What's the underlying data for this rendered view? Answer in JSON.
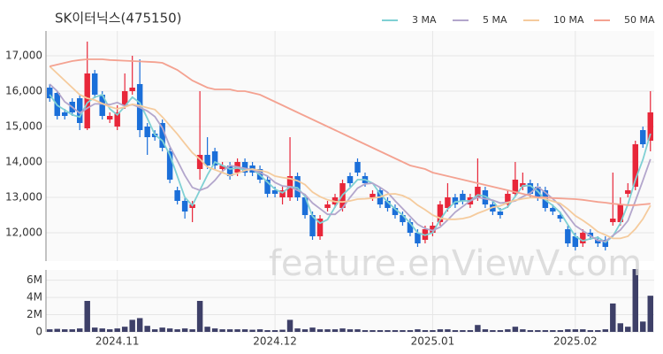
{
  "chart_data": [
    {
      "type": "candlestick",
      "title": "SK이터닉스(475150)",
      "watermark": "feature.enViewV.com",
      "categories": [
        null,
        null,
        null,
        null,
        null,
        null,
        null,
        null,
        null,
        "2024.11",
        null,
        null,
        null,
        null,
        null,
        null,
        null,
        null,
        null,
        null,
        null,
        null,
        null,
        null,
        null,
        null,
        null,
        null,
        null,
        null,
        "2024.12",
        null,
        null,
        null,
        null,
        null,
        null,
        null,
        null,
        null,
        null,
        null,
        null,
        null,
        null,
        null,
        null,
        null,
        null,
        null,
        null,
        "2025.01",
        null,
        null,
        null,
        null,
        null,
        null,
        null,
        null,
        null,
        null,
        null,
        null,
        null,
        null,
        null,
        null,
        null,
        null,
        "2025.02",
        null,
        null,
        null,
        null,
        null,
        null,
        null,
        null,
        null,
        null
      ],
      "open": [
        16100,
        15950,
        15400,
        15700,
        15800,
        14950,
        16500,
        15900,
        15200,
        15000,
        15600,
        16000,
        16200,
        15000,
        14800,
        15100,
        14300,
        13200,
        12900,
        12700,
        13800,
        14200,
        14300,
        13800,
        13900,
        13700,
        14000,
        13900,
        13800,
        13500,
        13200,
        13000,
        13000,
        13600,
        13000,
        12500,
        11900,
        12700,
        12800,
        12700,
        13600,
        14000,
        13600,
        13000,
        13200,
        12900,
        12700,
        12500,
        12300,
        12000,
        11800,
        12000,
        12300,
        12700,
        13000,
        13100,
        12800,
        13000,
        13200,
        12800,
        12600,
        12800,
        13100,
        13300,
        13400,
        13300,
        13200,
        12700,
        12500,
        12100,
        11900,
        11700,
        12000,
        11800,
        11800,
        12300,
        12300,
        13100,
        13300,
        14900,
        14600
      ],
      "high": [
        16200,
        16000,
        15500,
        15800,
        15900,
        17400,
        16600,
        16000,
        15400,
        15600,
        16500,
        17000,
        16900,
        15100,
        14900,
        15200,
        14400,
        13300,
        13000,
        12900,
        16000,
        14700,
        14400,
        14000,
        14000,
        14100,
        14100,
        14000,
        13900,
        13600,
        13300,
        13300,
        14700,
        13700,
        13100,
        12600,
        12500,
        12900,
        13100,
        13500,
        13700,
        14100,
        13700,
        13200,
        13300,
        13000,
        12800,
        12600,
        12400,
        12100,
        12200,
        12300,
        12900,
        13400,
        13100,
        13200,
        13100,
        14100,
        13300,
        12900,
        12700,
        13200,
        14000,
        13700,
        13500,
        13400,
        13300,
        12800,
        12600,
        12200,
        12000,
        12100,
        12100,
        11900,
        11900,
        13700,
        13000,
        13400,
        14600,
        15000,
        16000
      ],
      "low": [
        15700,
        15200,
        15200,
        15300,
        14900,
        14900,
        15800,
        15200,
        15100,
        14900,
        15500,
        15900,
        14700,
        14200,
        14600,
        14300,
        13400,
        12800,
        12400,
        12300,
        13500,
        13800,
        13800,
        13700,
        13500,
        13600,
        13600,
        13600,
        13400,
        13000,
        13000,
        12800,
        12900,
        12900,
        12400,
        11800,
        11800,
        12600,
        12700,
        12600,
        13300,
        13600,
        13300,
        12900,
        12700,
        12600,
        12400,
        12200,
        11900,
        11600,
        11700,
        11900,
        12200,
        12600,
        12700,
        12800,
        12700,
        12900,
        12700,
        12500,
        12400,
        12700,
        13000,
        13200,
        13000,
        12900,
        12600,
        12500,
        12300,
        11600,
        11500,
        11600,
        11800,
        11600,
        11500,
        12200,
        12200,
        13000,
        13200,
        14400,
        14300
      ],
      "close": [
        15800,
        15300,
        15300,
        15400,
        15100,
        16500,
        15900,
        15300,
        15300,
        15400,
        16000,
        16100,
        14900,
        14700,
        14700,
        14400,
        13500,
        12900,
        12600,
        12800,
        14200,
        13900,
        13900,
        13900,
        13600,
        14000,
        13700,
        13700,
        13500,
        13100,
        13100,
        13200,
        13600,
        13000,
        12500,
        11900,
        12400,
        12800,
        13000,
        13400,
        13400,
        13700,
        13400,
        13100,
        12800,
        12700,
        12500,
        12300,
        12000,
        11700,
        12100,
        12200,
        12800,
        13000,
        12800,
        12900,
        13000,
        13300,
        12800,
        12600,
        12500,
        13100,
        13500,
        13400,
        13100,
        13000,
        12700,
        12600,
        12400,
        11700,
        11600,
        12000,
        11900,
        11700,
        11600,
        12400,
        12800,
        13200,
        14500,
        14500,
        15400
      ],
      "up_color": "#e8273a",
      "down_color": "#1b6fd9",
      "series": [
        {
          "name": "3 MA",
          "color": "#7fd0d4",
          "values": [
            15900,
            15600,
            15470,
            15330,
            15270,
            15670,
            15830,
            15900,
            15500,
            15330,
            15570,
            15830,
            15670,
            15230,
            14770,
            14600,
            14200,
            13600,
            13000,
            12770,
            13200,
            13630,
            14000,
            13900,
            13800,
            13830,
            13770,
            13800,
            13630,
            13430,
            13230,
            13130,
            13300,
            13270,
            13030,
            12470,
            12270,
            12370,
            12730,
            13070,
            13270,
            13500,
            13500,
            13400,
            13100,
            12870,
            12670,
            12500,
            12270,
            12000,
            11930,
            12000,
            12370,
            12670,
            12870,
            12900,
            12900,
            13070,
            13030,
            12900,
            12630,
            12730,
            13030,
            13330,
            13330,
            13170,
            12930,
            12770,
            12570,
            12230,
            11900,
            11770,
            11830,
            11870,
            11730,
            11900,
            12270,
            12800,
            13500,
            14070,
            14800
          ]
        },
        {
          "name": "5 MA",
          "color": "#b3a6cc",
          "values": [
            16200,
            16000,
            15700,
            15550,
            15380,
            15520,
            15640,
            15640,
            15620,
            15680,
            15580,
            15620,
            15540,
            15440,
            15280,
            14960,
            14440,
            14040,
            13620,
            13280,
            13200,
            13280,
            13480,
            13740,
            13900,
            13860,
            13820,
            13780,
            13700,
            13600,
            13420,
            13320,
            13300,
            13200,
            13080,
            12840,
            12680,
            12520,
            12520,
            12700,
            13000,
            13260,
            13380,
            13400,
            13280,
            13140,
            12900,
            12680,
            12460,
            12240,
            12120,
            12060,
            12160,
            12360,
            12580,
            12740,
            12900,
            13000,
            12960,
            12920,
            12840,
            12860,
            12900,
            13020,
            13120,
            13300,
            13140,
            12960,
            12760,
            12480,
            12200,
            12060,
            11920,
            11780,
            11760,
            11920,
            12080,
            12340,
            12900,
            13480,
            14080
          ]
        },
        {
          "name": "10 MA",
          "color": "#f5cb9d",
          "values": [
            16700,
            16500,
            16300,
            16100,
            15900,
            15800,
            15750,
            15650,
            15560,
            15500,
            15550,
            15630,
            15590,
            15530,
            15480,
            15270,
            15030,
            14790,
            14520,
            14260,
            14080,
            13860,
            13780,
            13700,
            13620,
            13680,
            13760,
            13800,
            13760,
            13710,
            13600,
            13560,
            13530,
            13470,
            13360,
            13150,
            13020,
            12930,
            12880,
            12870,
            12900,
            12950,
            12960,
            12980,
            13010,
            13090,
            13100,
            13050,
            12950,
            12780,
            12650,
            12500,
            12410,
            12380,
            12380,
            12400,
            12450,
            12550,
            12630,
            12720,
            12760,
            12850,
            12920,
            12960,
            12990,
            12990,
            12960,
            12890,
            12830,
            12670,
            12480,
            12350,
            12200,
            12030,
            11940,
            11840,
            11840,
            11900,
            12110,
            12390,
            12770
          ]
        },
        {
          "name": "50 MA",
          "color": "#f4a291",
          "values": [
            16700,
            16750,
            16800,
            16850,
            16880,
            16900,
            16900,
            16900,
            16880,
            16870,
            16860,
            16850,
            16840,
            16830,
            16820,
            16800,
            16700,
            16600,
            16450,
            16300,
            16200,
            16100,
            16050,
            16050,
            16050,
            16000,
            16000,
            15950,
            15900,
            15800,
            15700,
            15600,
            15500,
            15400,
            15300,
            15200,
            15100,
            15000,
            14900,
            14800,
            14700,
            14600,
            14500,
            14400,
            14300,
            14200,
            14100,
            14000,
            13900,
            13850,
            13800,
            13700,
            13650,
            13600,
            13550,
            13500,
            13450,
            13400,
            13350,
            13300,
            13250,
            13200,
            13150,
            13100,
            13050,
            13000,
            13000,
            12980,
            12970,
            12960,
            12950,
            12930,
            12900,
            12870,
            12850,
            12820,
            12800,
            12780,
            12780,
            12800,
            12820
          ]
        }
      ],
      "ylim": [
        11200,
        17700
      ],
      "yticks": [
        {
          "value": 12000,
          "label": "12,000"
        },
        {
          "value": 13000,
          "label": "13,000"
        },
        {
          "value": 14000,
          "label": "14,000"
        },
        {
          "value": 15000,
          "label": "15,000"
        },
        {
          "value": 16000,
          "label": "16,000"
        },
        {
          "value": 17000,
          "label": "17,000"
        }
      ],
      "grid": true
    },
    {
      "type": "bar",
      "color": "#3e4068",
      "values": [
        300000,
        350000,
        300000,
        300000,
        400000,
        3600000,
        500000,
        400000,
        300000,
        400000,
        600000,
        1400000,
        1600000,
        700000,
        300000,
        500000,
        400000,
        300000,
        400000,
        300000,
        3600000,
        600000,
        400000,
        300000,
        300000,
        300000,
        300000,
        250000,
        300000,
        200000,
        200000,
        250000,
        1400000,
        400000,
        300000,
        500000,
        300000,
        300000,
        300000,
        400000,
        300000,
        300000,
        200000,
        200000,
        200000,
        200000,
        200000,
        200000,
        200000,
        300000,
        200000,
        200000,
        300000,
        300000,
        200000,
        200000,
        200000,
        800000,
        300000,
        200000,
        200000,
        300000,
        600000,
        300000,
        200000,
        200000,
        200000,
        200000,
        200000,
        300000,
        300000,
        300000,
        200000,
        200000,
        300000,
        3300000,
        1000000,
        600000,
        7300000,
        1200000,
        4200000
      ],
      "ylim": [
        0,
        7200000
      ],
      "yticks": [
        {
          "value": 0,
          "label": "0"
        },
        {
          "value": 2000000,
          "label": "2M"
        },
        {
          "value": 4000000,
          "label": "4M"
        },
        {
          "value": 6000000,
          "label": "6M"
        }
      ]
    }
  ]
}
